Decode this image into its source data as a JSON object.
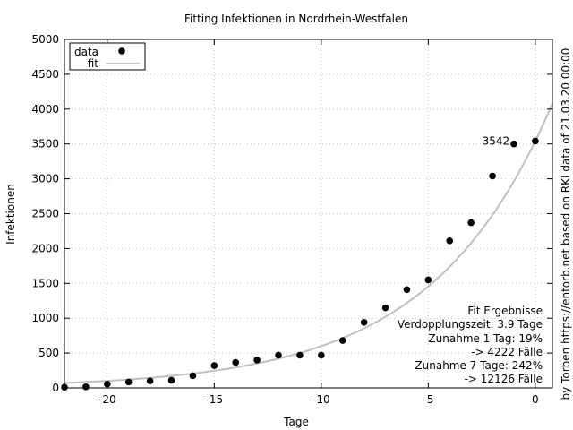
{
  "chart_data": {
    "type": "scatter",
    "title": "Fitting Infektionen in Nordrhein-Westfalen",
    "xlabel": "Tage",
    "ylabel": "Infektionen",
    "right_label": "by Torben https://entorb.net based on RKI data of 21.03.20 00:00",
    "xlim": [
      -22,
      0.8
    ],
    "ylim": [
      0,
      5000
    ],
    "x_ticks": [
      -20,
      -15,
      -10,
      -5,
      0
    ],
    "x_tick_labels": [
      "-20",
      "-15",
      "-10",
      "-5",
      "0"
    ],
    "y_ticks": [
      0,
      500,
      1000,
      1500,
      2000,
      2500,
      3000,
      3500,
      4000,
      4500,
      5000
    ],
    "y_tick_labels": [
      "0",
      "500",
      "1000",
      "1500",
      "2000",
      "2500",
      "3000",
      "3500",
      "4000",
      "4500",
      "5000"
    ],
    "grid": true,
    "legend": {
      "position": "top-left",
      "entries": [
        {
          "label": "data",
          "style": "point",
          "color": "#000000"
        },
        {
          "label": "fit",
          "style": "line",
          "color": "#c0c0c0"
        }
      ]
    },
    "series": [
      {
        "name": "data",
        "style": "point",
        "color": "#000000",
        "x": [
          -22,
          -21,
          -20,
          -19,
          -18,
          -17,
          -16,
          -15,
          -14,
          -13,
          -12,
          -11,
          -10,
          -9,
          -8,
          -7,
          -6,
          -5,
          -4,
          -3,
          -2,
          -1,
          0
        ],
        "y": [
          10,
          15,
          55,
          85,
          100,
          110,
          175,
          320,
          365,
          400,
          470,
          470,
          470,
          680,
          940,
          1150,
          1410,
          1550,
          2110,
          2370,
          3040,
          3500,
          3542
        ]
      },
      {
        "name": "fit",
        "style": "line",
        "color": "#c0c0c0",
        "fit": {
          "model": "exponential",
          "a": 3542,
          "doubling_time_days": 3.9
        }
      }
    ],
    "annotations": [
      {
        "text": "3542",
        "x": -1.2,
        "y": 3542
      }
    ],
    "fit_results": [
      "Fit Ergebnisse",
      "Verdopplungszeit: 3.9 Tage",
      "Zunahme 1 Tag: 19%",
      "-> 4222 Fälle",
      "Zunahme 7 Tage: 242%",
      "-> 12126 Fälle"
    ]
  }
}
